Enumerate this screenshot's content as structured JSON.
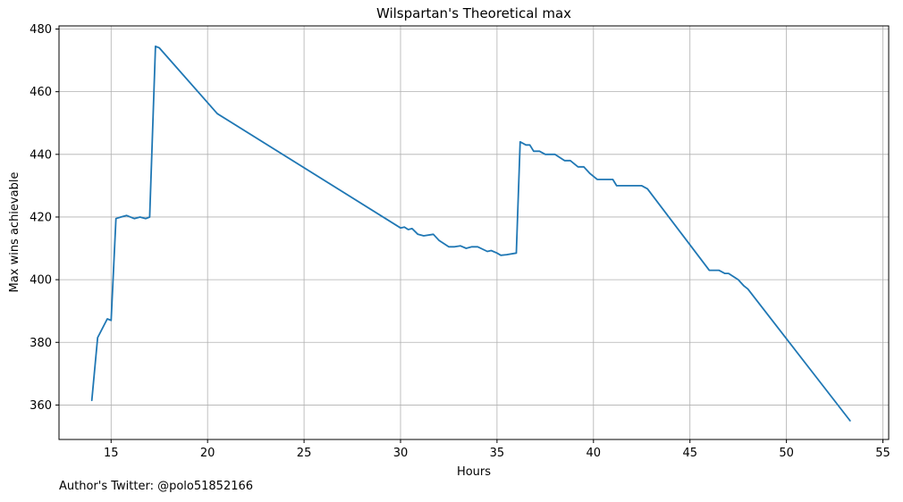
{
  "chart_data": {
    "type": "line",
    "title": "Wilspartan's Theoretical max",
    "xlabel": "Hours",
    "ylabel": "Max wins achievable",
    "xlim": [
      12.3,
      55.3
    ],
    "ylim": [
      349,
      481
    ],
    "xticks": [
      15,
      20,
      25,
      30,
      35,
      40,
      45,
      50,
      55
    ],
    "yticks": [
      360,
      380,
      400,
      420,
      440,
      460,
      480
    ],
    "grid": true,
    "color": "#1f77b4",
    "series": [
      {
        "x": [
          14.0,
          14.3,
          14.8,
          15.0,
          15.25,
          15.5,
          15.8,
          16.2,
          16.5,
          16.8,
          17.0,
          17.3,
          17.5,
          20.5,
          30.0,
          30.2,
          30.4,
          30.6,
          30.9,
          31.2,
          31.7,
          32.0,
          32.5,
          32.8,
          33.1,
          33.4,
          33.7,
          34.0,
          34.5,
          34.7,
          35.0,
          35.2,
          35.5,
          36.0,
          36.2,
          36.5,
          36.7,
          36.9,
          37.2,
          37.5,
          38.0,
          38.5,
          38.8,
          39.2,
          39.5,
          39.8,
          40.2,
          40.5,
          41.0,
          41.2,
          42.5,
          42.8,
          46.0,
          46.5,
          46.8,
          47.0,
          47.5,
          47.8,
          48.0,
          53.3
        ],
        "y": [
          361.5,
          381.5,
          387.5,
          387.0,
          419.5,
          420.0,
          420.5,
          419.5,
          420.0,
          419.5,
          420.0,
          474.5,
          474.0,
          453.0,
          416.5,
          416.8,
          416.0,
          416.3,
          414.5,
          414.0,
          414.5,
          412.5,
          410.5,
          410.5,
          410.8,
          410.0,
          410.5,
          410.5,
          409.0,
          409.3,
          408.5,
          407.8,
          408.0,
          408.5,
          444.0,
          443.0,
          443.0,
          441.0,
          441.0,
          440.0,
          440.0,
          438.0,
          438.0,
          436.0,
          436.0,
          434.0,
          432.0,
          432.0,
          432.0,
          430.0,
          430.0,
          429.0,
          403.0,
          403.0,
          402.0,
          402.0,
          400.0,
          398.0,
          397.0,
          355.0
        ]
      }
    ]
  },
  "footer": "Author's Twitter: @polo51852166"
}
